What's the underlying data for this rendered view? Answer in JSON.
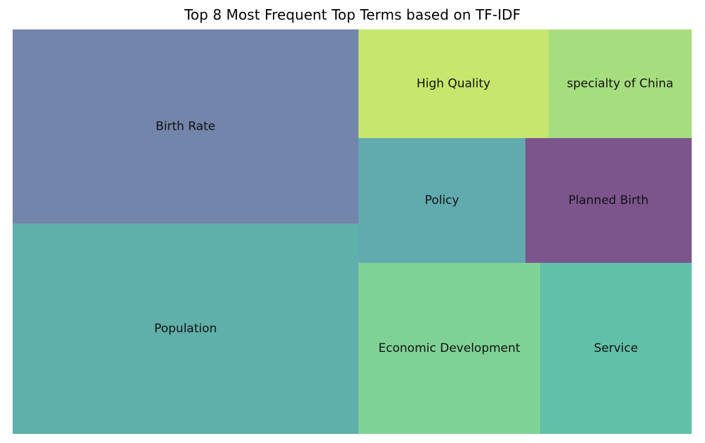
{
  "chart_data": {
    "type": "treemap",
    "title": "Top 8 Most Frequent Top Terms based on TF-IDF",
    "items": [
      {
        "label": "Population",
        "color": "#5fafaa"
      },
      {
        "label": "Birth Rate",
        "color": "#7385ab"
      },
      {
        "label": "Economic Development",
        "color": "#7fd296"
      },
      {
        "label": "Service",
        "color": "#61c0a8"
      },
      {
        "label": "Policy",
        "color": "#61abaf"
      },
      {
        "label": "Planned Birth",
        "color": "#7c558c"
      },
      {
        "label": "High Quality",
        "color": "#c7e66d"
      },
      {
        "label": "specialty of China",
        "color": "#a6dd7e"
      }
    ]
  }
}
